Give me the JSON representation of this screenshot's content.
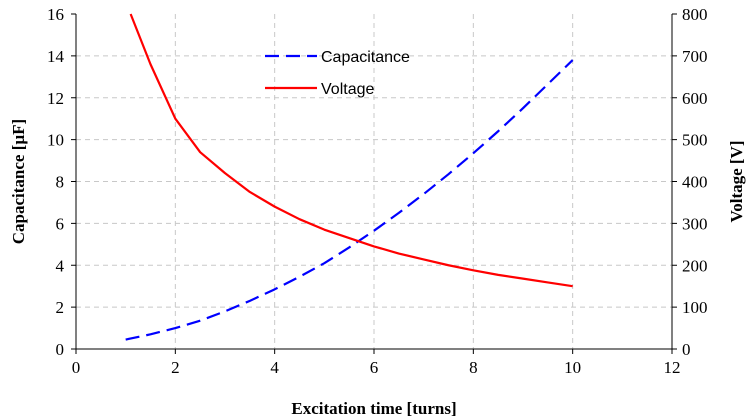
{
  "chart_data": {
    "type": "line",
    "xlabel": "Excitation time [turns]",
    "ylabel_left": "Capacitance [µF]",
    "ylabel_right": "Voltage [V]",
    "xlim": [
      0,
      12
    ],
    "ylim_left": [
      0,
      16
    ],
    "ylim_right": [
      0,
      800
    ],
    "x_ticks": [
      "0",
      "2",
      "4",
      "6",
      "8",
      "10",
      "12"
    ],
    "y_left_ticks": [
      "0",
      "2",
      "4",
      "6",
      "8",
      "10",
      "12",
      "14",
      "16"
    ],
    "y_right_ticks": [
      "0",
      "100",
      "200",
      "300",
      "400",
      "500",
      "600",
      "700",
      "800"
    ],
    "grid": true,
    "legend_position": "top-center",
    "series": [
      {
        "name": "Capacitance",
        "axis": "left",
        "style": "dashed",
        "color": "#0000ff",
        "x": [
          1.0,
          1.5,
          2.0,
          2.5,
          3.0,
          3.5,
          4.0,
          4.5,
          5.0,
          5.5,
          6.0,
          6.5,
          7.0,
          7.5,
          8.0,
          8.5,
          9.0,
          9.5,
          10.0
        ],
        "values": [
          0.45,
          0.7,
          1.0,
          1.35,
          1.8,
          2.3,
          2.85,
          3.45,
          4.1,
          4.85,
          5.65,
          6.5,
          7.4,
          8.35,
          9.35,
          10.4,
          11.5,
          12.65,
          13.8
        ]
      },
      {
        "name": "Voltage",
        "axis": "right",
        "style": "solid",
        "color": "#ff0000",
        "x": [
          1.1,
          1.5,
          2.0,
          2.5,
          3.0,
          3.5,
          4.0,
          4.5,
          5.0,
          5.5,
          6.0,
          6.5,
          7.0,
          7.5,
          8.0,
          8.5,
          9.0,
          9.5,
          10.0
        ],
        "values": [
          800,
          680,
          550,
          470,
          420,
          375,
          340,
          310,
          285,
          265,
          245,
          228,
          214,
          200,
          188,
          177,
          168,
          159,
          150
        ]
      }
    ]
  }
}
